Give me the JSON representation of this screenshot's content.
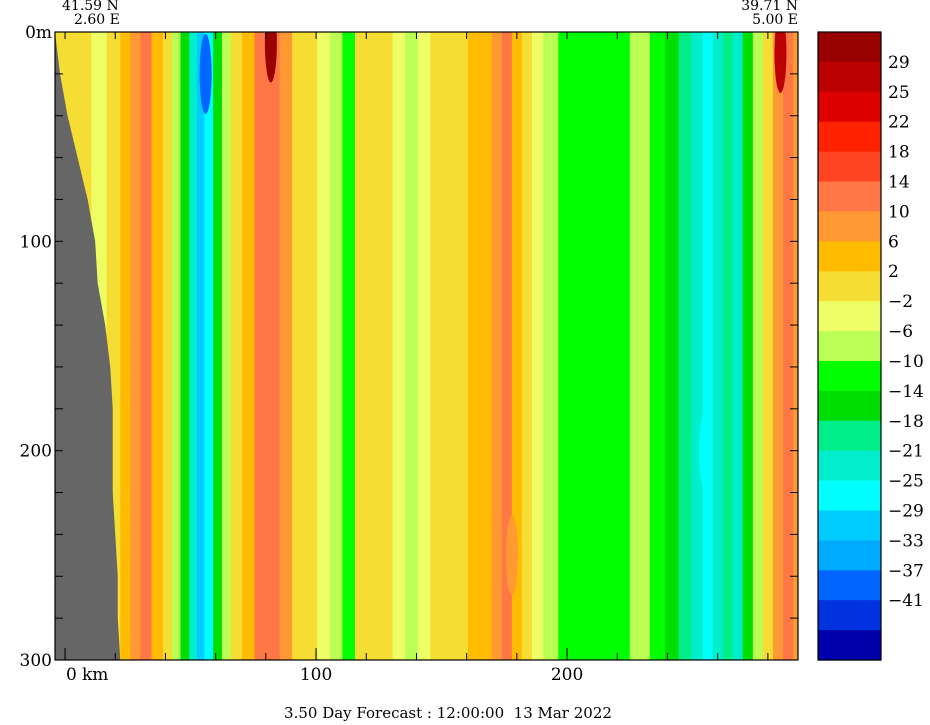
{
  "chart_data": {
    "type": "heatmap",
    "title": "",
    "footer": "3.50 Day Forecast : 12:00:00  13 Mar 2022",
    "endpoints": {
      "left": {
        "lat": "41.59 N",
        "lon": "2.60 E"
      },
      "right": {
        "lat": "39.71 N",
        "lon": "5.00 E"
      }
    },
    "x_axis": {
      "label": "km",
      "range": [
        -4,
        292
      ],
      "ticks": [
        {
          "value": 0,
          "label": "0"
        },
        {
          "value": 100,
          "label": "100"
        },
        {
          "value": 200,
          "label": "200"
        }
      ],
      "minor_ticks": [
        0,
        20,
        40,
        60,
        80,
        100,
        120,
        140,
        160,
        180,
        200,
        220,
        240,
        260,
        280
      ]
    },
    "y_axis": {
      "label": "m",
      "range": [
        0,
        300
      ],
      "inverted": true,
      "ticks": [
        {
          "value": 0,
          "label": "0m"
        },
        {
          "value": 100,
          "label": "100"
        },
        {
          "value": 200,
          "label": "200"
        },
        {
          "value": 300,
          "label": "300"
        }
      ],
      "minor_ticks": [
        0,
        20,
        40,
        60,
        80,
        100,
        120,
        140,
        160,
        180,
        200,
        220,
        240,
        260,
        280,
        300
      ]
    },
    "colorbar": {
      "levels": [
        {
          "label": "",
          "color": "#990000"
        },
        {
          "label": "29",
          "color": "#bb0000"
        },
        {
          "label": "25",
          "color": "#dd0000"
        },
        {
          "label": "22",
          "color": "#ff2200"
        },
        {
          "label": "18",
          "color": "#ff4422"
        },
        {
          "label": "14",
          "color": "#ff7744"
        },
        {
          "label": "10",
          "color": "#ff9933"
        },
        {
          "label": "6",
          "color": "#ffbb00"
        },
        {
          "label": "2",
          "color": "#f5dd33"
        },
        {
          "label": "-2",
          "color": "#eeff66"
        },
        {
          "label": "-6",
          "color": "#bbff55"
        },
        {
          "label": "-10",
          "color": "#00ff00"
        },
        {
          "label": "-14",
          "color": "#00dd00"
        },
        {
          "label": "-18",
          "color": "#00ee88"
        },
        {
          "label": "-21",
          "color": "#00eecc"
        },
        {
          "label": "-25",
          "color": "#00ffff"
        },
        {
          "label": "-29",
          "color": "#00ccff"
        },
        {
          "label": "-33",
          "color": "#00aaff"
        },
        {
          "label": "-37",
          "color": "#0066ff"
        },
        {
          "label": "-41",
          "color": "#0033dd"
        },
        {
          "label": "",
          "color": "#0000aa"
        }
      ]
    },
    "land_color": "#666666",
    "land_boundary": [
      {
        "depth": 0,
        "km": -4
      },
      {
        "depth": 20,
        "km": -2
      },
      {
        "depth": 40,
        "km": 1
      },
      {
        "depth": 60,
        "km": 5
      },
      {
        "depth": 80,
        "km": 9
      },
      {
        "depth": 100,
        "km": 12
      },
      {
        "depth": 120,
        "km": 13
      },
      {
        "depth": 140,
        "km": 16
      },
      {
        "depth": 160,
        "km": 18
      },
      {
        "depth": 180,
        "km": 19
      },
      {
        "depth": 200,
        "km": 19
      },
      {
        "depth": 220,
        "km": 19
      },
      {
        "depth": 240,
        "km": 20
      },
      {
        "depth": 260,
        "km": 21
      },
      {
        "depth": 280,
        "km": 21
      },
      {
        "depth": 300,
        "km": 22
      }
    ],
    "columns": [
      {
        "km": 0,
        "v": -2
      },
      {
        "km": 8,
        "v": -2
      },
      {
        "km": 13,
        "v": -6
      },
      {
        "km": 20,
        "v": -2
      },
      {
        "km": 24,
        "v": 4
      },
      {
        "km": 28,
        "v": 8
      },
      {
        "km": 32,
        "v": 10
      },
      {
        "km": 37,
        "v": 4
      },
      {
        "km": 41,
        "v": -2
      },
      {
        "km": 44,
        "v": -10
      },
      {
        "km": 48,
        "v": -18
      },
      {
        "km": 51,
        "v": -25
      },
      {
        "km": 54,
        "v": -33
      },
      {
        "km": 57,
        "v": -29
      },
      {
        "km": 61,
        "v": -18
      },
      {
        "km": 64,
        "v": -10
      },
      {
        "km": 68,
        "v": -2
      },
      {
        "km": 73,
        "v": 4
      },
      {
        "km": 78,
        "v": 10
      },
      {
        "km": 83,
        "v": 12
      },
      {
        "km": 88,
        "v": 6
      },
      {
        "km": 93,
        "v": 0
      },
      {
        "km": 98,
        "v": -2
      },
      {
        "km": 103,
        "v": -4
      },
      {
        "km": 108,
        "v": -8
      },
      {
        "km": 113,
        "v": -12
      },
      {
        "km": 118,
        "v": -2
      },
      {
        "km": 123,
        "v": -2
      },
      {
        "km": 128,
        "v": -2
      },
      {
        "km": 133,
        "v": -4
      },
      {
        "km": 138,
        "v": -8
      },
      {
        "km": 143,
        "v": -4
      },
      {
        "km": 148,
        "v": 0
      },
      {
        "km": 153,
        "v": -2
      },
      {
        "km": 158,
        "v": 0
      },
      {
        "km": 163,
        "v": 2
      },
      {
        "km": 168,
        "v": 4
      },
      {
        "km": 172,
        "v": 8
      },
      {
        "km": 176,
        "v": 10
      },
      {
        "km": 180,
        "v": 4
      },
      {
        "km": 184,
        "v": -2
      },
      {
        "km": 188,
        "v": -6
      },
      {
        "km": 193,
        "v": -10
      },
      {
        "km": 200,
        "v": -12
      },
      {
        "km": 210,
        "v": -12
      },
      {
        "km": 220,
        "v": -12
      },
      {
        "km": 230,
        "v": -10
      },
      {
        "km": 236,
        "v": -14
      },
      {
        "km": 242,
        "v": -18
      },
      {
        "km": 247,
        "v": -21
      },
      {
        "km": 252,
        "v": -25
      },
      {
        "km": 256,
        "v": -29
      },
      {
        "km": 260,
        "v": -25
      },
      {
        "km": 264,
        "v": -21
      },
      {
        "km": 268,
        "v": -25
      },
      {
        "km": 272,
        "v": -18
      },
      {
        "km": 276,
        "v": -10
      },
      {
        "km": 280,
        "v": -2
      },
      {
        "km": 284,
        "v": 8
      },
      {
        "km": 288,
        "v": 12
      },
      {
        "km": 292,
        "v": 6
      }
    ],
    "features": [
      {
        "km": 56,
        "depth": 20,
        "v": -41,
        "note": "deep blue core near surface"
      },
      {
        "km": 82,
        "depth": 5,
        "v": 29,
        "note": "dark red core near surface"
      },
      {
        "km": 285,
        "depth": 10,
        "v": 25,
        "note": "red patch at right edge near surface"
      },
      {
        "km": 178,
        "depth": 250,
        "v": 8,
        "note": "orange band at depth"
      },
      {
        "km": 255,
        "depth": 200,
        "v": -29,
        "note": "light blue band at depth"
      }
    ]
  }
}
